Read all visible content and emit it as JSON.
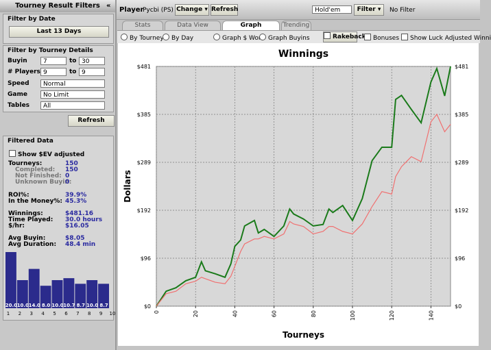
{
  "sidebar": {
    "title": "Tourney Result Filters",
    "collapse": "«",
    "date_section": "Filter by Date",
    "date_button": "Last 13 Days",
    "details_section": "Filter by Tourney Details",
    "fields": [
      {
        "label": "Buyin",
        "from": 7,
        "to_label": "to",
        "to": 30
      },
      {
        "label": "# Players",
        "from": 9,
        "to_label": "to",
        "to": 9
      }
    ],
    "selects": [
      {
        "label": "Speed",
        "value": "Normal"
      },
      {
        "label": "Game",
        "value": "No Limit"
      },
      {
        "label": "Tables",
        "value": "All"
      }
    ],
    "refresh": "Refresh",
    "filtered_section": "Filtered Data",
    "ev_checkbox": "Show $EV adjusted",
    "stats": [
      {
        "label": "Tourneys:",
        "value": 150
      },
      {
        "label": "Completed:",
        "value": 150
      },
      {
        "label": "Not Finished:",
        "value": 0
      },
      {
        "label": "Unknown Buyin:",
        "value": 0
      },
      {
        "label": "ROI%:",
        "value": "39.9%"
      },
      {
        "label": "In the Money%:",
        "value": "45.3%"
      },
      {
        "label": "Winnings:",
        "value": "$481.16"
      },
      {
        "label": "Time Played:",
        "value": "30.0 hours"
      },
      {
        "label": "$/hr:",
        "value": "$16.05"
      },
      {
        "label": "Avg Buyin:",
        "value": "$8.05"
      },
      {
        "label": "Avg Duration:",
        "value": "48.4 min"
      }
    ]
  },
  "toolbar": {
    "player_label": "Player",
    "player": "Pycbi (PS)",
    "change": "Change",
    "refresh": "Refresh",
    "game": "Hold'em",
    "filter": "Filter",
    "filter_status": "No Filter"
  },
  "tabs": [
    "Stats",
    "Data View",
    "Graph",
    "Trending"
  ],
  "options": {
    "by_tourney": "By Tourney",
    "by_day": "By Day",
    "graph_won": "Graph $ Won",
    "graph_buyins": "Graph Buyins",
    "rakeback": "Rakeback",
    "bonuses": "Bonuses",
    "luck": "Show Luck Adjusted Winni"
  },
  "chart_data": [
    {
      "type": "line",
      "title": "Winnings",
      "x_label": "Tourneys",
      "y_label": "Dollars",
      "x": [
        0,
        5,
        10,
        15,
        20,
        23,
        25,
        30,
        35,
        38,
        40,
        43,
        45,
        50,
        52,
        55,
        60,
        65,
        68,
        70,
        75,
        80,
        85,
        88,
        90,
        95,
        100,
        105,
        110,
        115,
        120,
        122,
        125,
        130,
        135,
        140,
        143,
        147,
        150
      ],
      "series": [
        {
          "color": "#1a7a1a",
          "values": [
            0,
            30,
            37,
            51,
            58,
            89,
            71,
            65,
            58,
            85,
            120,
            133,
            161,
            172,
            147,
            154,
            140,
            161,
            195,
            185,
            175,
            161,
            164,
            195,
            188,
            202,
            172,
            216,
            292,
            319,
            319,
            415,
            423,
            395,
            368,
            450,
            477,
            422,
            481.16
          ]
        },
        {
          "color": "#f07070",
          "values": [
            0,
            25,
            30,
            45,
            50,
            58,
            55,
            48,
            45,
            60,
            80,
            110,
            125,
            135,
            135,
            140,
            135,
            145,
            170,
            165,
            160,
            145,
            150,
            160,
            160,
            150,
            145,
            165,
            200,
            230,
            225,
            260,
            280,
            300,
            290,
            370,
            385,
            350,
            365
          ]
        }
      ],
      "xlim": [
        0,
        150
      ],
      "xticks": [
        0,
        20,
        40,
        60,
        80,
        100,
        120,
        140
      ],
      "ylim": [
        0,
        481.16
      ],
      "yticks": [
        {
          "value": 0,
          "label": "$0"
        },
        {
          "value": 96.232,
          "label": "$96"
        },
        {
          "value": 192.464,
          "label": "$192"
        },
        {
          "value": 288.696,
          "label": "$289"
        },
        {
          "value": 384.928,
          "label": "$385"
        },
        {
          "value": 481.16,
          "label": "$481"
        }
      ],
      "grid": true
    },
    {
      "type": "histogram",
      "color": "#2b2b8c",
      "bins": [
        1,
        2,
        3,
        4,
        5,
        6,
        7,
        8,
        9,
        10
      ],
      "values": [
        20,
        10,
        14,
        8,
        10,
        10.7,
        8.7,
        10,
        8.7
      ],
      "value_labels": [
        "20.0",
        "10.0",
        "14.0",
        "8.0",
        "10.0",
        "10.7",
        "8.7",
        "10.0",
        "8.7"
      ]
    }
  ]
}
